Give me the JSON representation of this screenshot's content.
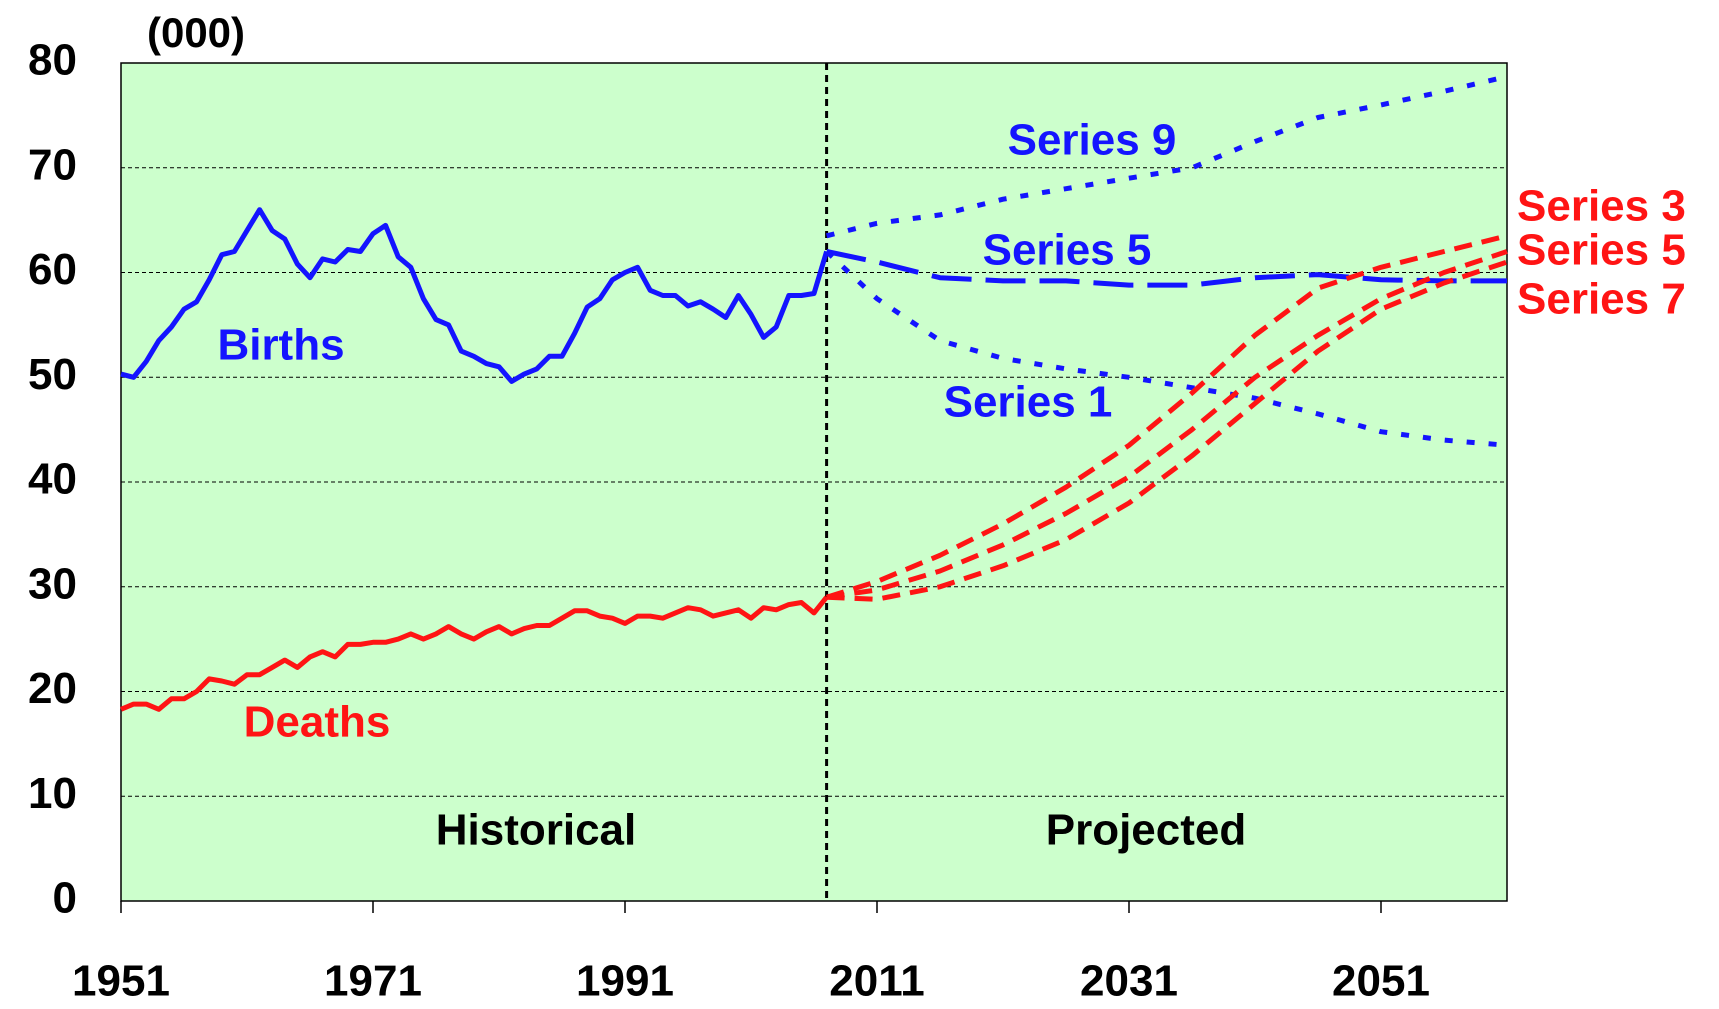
{
  "chart_data": {
    "type": "line",
    "unit_label": "(000)",
    "annotations": [
      "Historical",
      "Projected"
    ],
    "divider_x": 2007,
    "xlim": [
      1951,
      2061
    ],
    "xticks": [
      1951,
      1971,
      1991,
      2011,
      2031,
      2051
    ],
    "ylim": [
      0,
      80
    ],
    "yticks": [
      0,
      10,
      20,
      30,
      40,
      50,
      60,
      70,
      80
    ],
    "grid": true,
    "background": "#ccffcc",
    "series": [
      {
        "name": "Births",
        "color": "#1414ff",
        "style": "solid",
        "x": [
          1951,
          1952,
          1953,
          1954,
          1955,
          1956,
          1957,
          1958,
          1959,
          1960,
          1961,
          1962,
          1963,
          1964,
          1965,
          1966,
          1967,
          1968,
          1969,
          1970,
          1971,
          1972,
          1973,
          1974,
          1975,
          1976,
          1977,
          1978,
          1979,
          1980,
          1981,
          1982,
          1983,
          1984,
          1985,
          1986,
          1987,
          1988,
          1989,
          1990,
          1991,
          1992,
          1993,
          1994,
          1995,
          1996,
          1997,
          1998,
          1999,
          2000,
          2001,
          2002,
          2003,
          2004,
          2005,
          2006,
          2007
        ],
        "values": [
          50.3,
          50,
          51.5,
          53.5,
          54.8,
          56.5,
          57.2,
          59.3,
          61.7,
          62,
          64,
          66,
          64,
          63.2,
          60.8,
          59.5,
          61.3,
          61,
          62.2,
          62,
          63.7,
          64.5,
          61.5,
          60.5,
          57.5,
          55.5,
          55,
          52.5,
          52,
          51.3,
          51,
          49.6,
          50.3,
          50.8,
          52,
          52,
          54.2,
          56.7,
          57.5,
          59.3,
          60,
          60.5,
          58.3,
          57.8,
          57.8,
          56.8,
          57.2,
          56.5,
          55.7,
          57.8,
          56,
          53.8,
          54.8,
          57.8,
          57.8,
          58,
          62
        ]
      },
      {
        "name": "Deaths",
        "color": "#ff1414",
        "style": "solid",
        "x": [
          1951,
          1952,
          1953,
          1954,
          1955,
          1956,
          1957,
          1958,
          1959,
          1960,
          1961,
          1962,
          1963,
          1964,
          1965,
          1966,
          1967,
          1968,
          1969,
          1970,
          1971,
          1972,
          1973,
          1974,
          1975,
          1976,
          1977,
          1978,
          1979,
          1980,
          1981,
          1982,
          1983,
          1984,
          1985,
          1986,
          1987,
          1988,
          1989,
          1990,
          1991,
          1992,
          1993,
          1994,
          1995,
          1996,
          1997,
          1998,
          1999,
          2000,
          2001,
          2002,
          2003,
          2004,
          2005,
          2006,
          2007
        ],
        "values": [
          18.3,
          18.8,
          18.8,
          18.3,
          19.3,
          19.3,
          20,
          21.2,
          21,
          20.7,
          21.6,
          21.6,
          22.3,
          23,
          22.3,
          23.3,
          23.8,
          23.3,
          24.5,
          24.5,
          24.7,
          24.7,
          25,
          25.5,
          25,
          25.5,
          26.2,
          25.5,
          25,
          25.7,
          26.2,
          25.5,
          26,
          26.3,
          26.3,
          27,
          27.7,
          27.7,
          27.2,
          27,
          26.5,
          27.2,
          27.2,
          27,
          27.5,
          28,
          27.8,
          27.2,
          27.5,
          27.8,
          27,
          28,
          27.8,
          28.3,
          28.5,
          27.5,
          29
        ]
      },
      {
        "name": "Series 9",
        "color": "#1414ff",
        "style": "dotted",
        "x": [
          2007,
          2011,
          2016,
          2021,
          2026,
          2031,
          2036,
          2041,
          2046,
          2051,
          2056,
          2061
        ],
        "values": [
          63.5,
          64.7,
          65.5,
          67,
          68,
          69,
          70,
          72.5,
          74.8,
          76,
          77.3,
          78.7
        ]
      },
      {
        "name": "Series 5",
        "color": "#1414ff",
        "style": "longdash",
        "x": [
          2007,
          2011,
          2016,
          2021,
          2026,
          2031,
          2036,
          2041,
          2046,
          2051,
          2056,
          2061
        ],
        "values": [
          62,
          61,
          59.5,
          59.2,
          59.2,
          58.8,
          58.8,
          59.5,
          59.8,
          59.3,
          59.2,
          59.2
        ]
      },
      {
        "name": "Series 1",
        "color": "#1414ff",
        "style": "dotted",
        "x": [
          2007,
          2011,
          2016,
          2021,
          2026,
          2031,
          2036,
          2041,
          2046,
          2051,
          2056,
          2061
        ],
        "values": [
          62,
          57.5,
          53.5,
          51.8,
          50.8,
          50,
          49,
          48,
          46.5,
          44.8,
          44,
          43.5
        ]
      },
      {
        "name": "Series 3",
        "color": "#ff1414",
        "style": "dashed",
        "x": [
          2007,
          2011,
          2016,
          2021,
          2026,
          2031,
          2036,
          2041,
          2046,
          2051,
          2056,
          2061
        ],
        "values": [
          29,
          30.5,
          33,
          36,
          39.5,
          43.5,
          48.5,
          54,
          58.5,
          60.5,
          62,
          63.5
        ]
      },
      {
        "name": "Series 5",
        "color": "#ff1414",
        "style": "dashed",
        "x": [
          2007,
          2011,
          2016,
          2021,
          2026,
          2031,
          2036,
          2041,
          2046,
          2051,
          2056,
          2061
        ],
        "values": [
          29,
          29.7,
          31.5,
          34,
          37,
          40.5,
          45,
          50,
          54,
          57.5,
          60,
          62
        ]
      },
      {
        "name": "Series 7",
        "color": "#ff1414",
        "style": "dashed",
        "x": [
          2007,
          2011,
          2016,
          2021,
          2026,
          2031,
          2036,
          2041,
          2046,
          2051,
          2056,
          2061
        ],
        "values": [
          29,
          28.8,
          30,
          32,
          34.5,
          38,
          42.5,
          47.5,
          52.5,
          56.5,
          59,
          61
        ]
      }
    ]
  }
}
